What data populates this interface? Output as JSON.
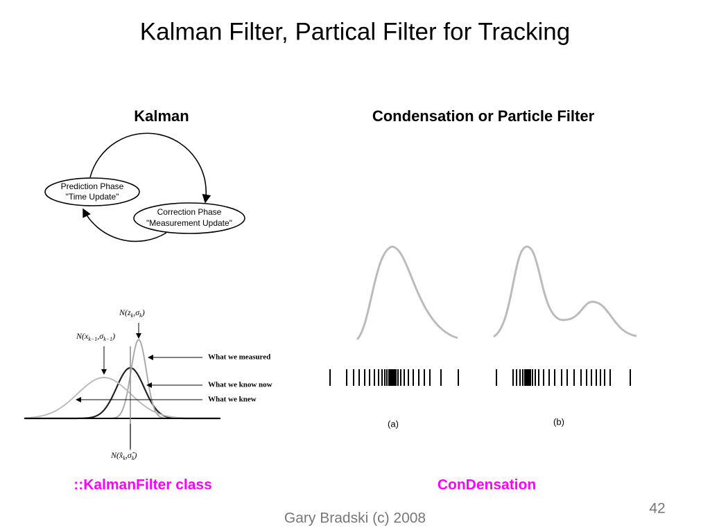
{
  "header": {
    "title": "Kalman Filter, Partical Filter for Tracking"
  },
  "left": {
    "heading": "Kalman",
    "cycle": {
      "prediction": [
        "Prediction Phase",
        "\"Time Update\""
      ],
      "correction": [
        "Correction Phase",
        "\"Measurement Update\""
      ]
    },
    "formulas": {
      "measured": [
        {
          "text": "N(z"
        },
        {
          "text": "k",
          "sub": true
        },
        {
          "text": ",σ"
        },
        {
          "text": "k",
          "sub": true
        },
        {
          "text": ")"
        }
      ],
      "prior": [
        {
          "text": "N(x"
        },
        {
          "text": "k−1",
          "sub": true
        },
        {
          "text": ",σ"
        },
        {
          "text": "k−1",
          "sub": true
        },
        {
          "text": ")"
        }
      ],
      "posterior": [
        {
          "text": "N(x̂"
        },
        {
          "text": "k",
          "sub": true
        },
        {
          "text": ",σ̂"
        },
        {
          "text": "k",
          "sub": true
        },
        {
          "text": ")"
        }
      ]
    },
    "annotations": [
      "What we measured",
      "What we know now",
      "What we knew"
    ],
    "link": "::KalmanFilter class"
  },
  "right": {
    "heading": "Condensation or Particle Filter",
    "captions": [
      "(a)",
      "(b)"
    ],
    "link": "ConDensation"
  },
  "footer": {
    "page_number": "42",
    "credit": "Gary Bradski (c) 2008"
  }
}
